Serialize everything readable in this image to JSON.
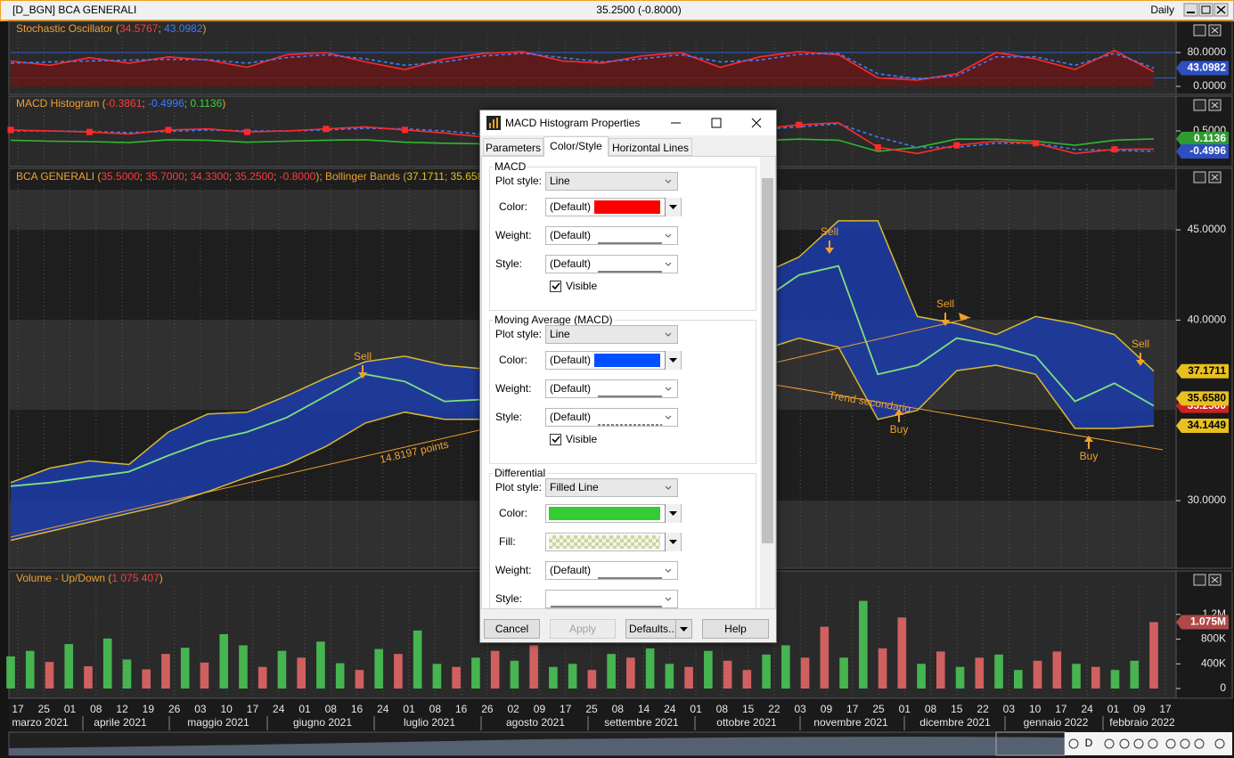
{
  "window": {
    "title": "[D_BGN] BCA GENERALI",
    "quote": "35.2500 (-0.8000)",
    "period": "Daily"
  },
  "stochastic": {
    "type": "line",
    "title_parts": [
      {
        "text": "Stochastic Oscillator (",
        "color": "#f0a030"
      },
      {
        "text": "34.5767",
        "color": "#ff3b3b"
      },
      {
        "text": "; ",
        "color": "#f0a030"
      },
      {
        "text": "43.0982",
        "color": "#3f7bff"
      },
      {
        "text": ")",
        "color": "#f0a030"
      }
    ],
    "ylim": [
      0,
      100
    ],
    "yticks": [
      {
        "value": 80,
        "label": "80.0000"
      },
      {
        "value": 0,
        "label": "0.0000"
      }
    ],
    "levels": [
      80,
      20
    ],
    "level_color": "#2f5fd0",
    "tags": [
      {
        "value": 43.0982,
        "label": "43.0982",
        "color": "#2f4fc0",
        "text_color": "#ffffff"
      }
    ],
    "series": [
      {
        "color": "#ff2a2a",
        "fill": "#6a1616",
        "values": [
          60,
          50,
          68,
          55,
          70,
          62,
          45,
          75,
          80,
          58,
          40,
          65,
          78,
          82,
          60,
          55,
          72,
          80,
          45,
          70,
          82,
          75,
          20,
          15,
          30,
          80,
          65,
          40,
          85,
          34.5767
        ]
      },
      {
        "color": "#3f7bff",
        "dashed": true,
        "values": [
          55,
          58,
          60,
          62,
          64,
          63,
          55,
          68,
          75,
          65,
          50,
          58,
          72,
          78,
          68,
          58,
          65,
          75,
          58,
          62,
          76,
          78,
          30,
          18,
          25,
          70,
          70,
          50,
          78,
          43.0982
        ]
      }
    ]
  },
  "macd": {
    "type": "line",
    "title_parts": [
      {
        "text": "MACD Histogram (",
        "color": "#f0a030"
      },
      {
        "text": "-0.3861",
        "color": "#ff3b3b"
      },
      {
        "text": "; ",
        "color": "#f0a030"
      },
      {
        "text": "-0.4996",
        "color": "#3f7bff"
      },
      {
        "text": "; ",
        "color": "#f0a030"
      },
      {
        "text": "0.1136",
        "color": "#3fd03f"
      },
      {
        "text": ")",
        "color": "#f0a030"
      }
    ],
    "ylim": [
      -1.15,
      1.24
    ],
    "yticks": [
      {
        "value": 0.5,
        "label": "0.5000"
      }
    ],
    "tags": [
      {
        "value": 0.1136,
        "label": "0.1136",
        "color": "#2f9a2f",
        "text_color": "#ffffff"
      },
      {
        "value": -0.4996,
        "label": "-0.4996",
        "color": "#2f4fc0",
        "text_color": "#ffffff"
      }
    ],
    "series": [
      {
        "color": "#2fb82f",
        "values": [
          0.05,
          0,
          -0.02,
          -0.07,
          0.07,
          0.05,
          -0.05,
          0,
          0.05,
          0.07,
          -0.05,
          -0.1,
          -0.13,
          -0.1,
          0.05,
          0.1,
          0.1,
          0.1,
          -0.05,
          0.03,
          0.1,
          0.05,
          -0.5,
          -0.3,
          0.1,
          0.1,
          0,
          -0.2,
          0.05,
          0.1136
        ]
      },
      {
        "color": "#3f7bff",
        "dashed": true,
        "values": [
          0.5,
          0.5,
          0.47,
          0.42,
          0.48,
          0.55,
          0.5,
          0.5,
          0.55,
          0.63,
          0.6,
          0.5,
          0.33,
          0.2,
          0.25,
          0.4,
          0.5,
          0.6,
          0.55,
          0.57,
          0.7,
          0.85,
          0.2,
          -0.3,
          -0.3,
          -0.1,
          -0.1,
          -0.4,
          -0.45,
          -0.4996
        ]
      },
      {
        "color": "#ff2a2a",
        "markers": true,
        "values": [
          0.55,
          0.5,
          0.45,
          0.35,
          0.55,
          0.6,
          0.45,
          0.5,
          0.6,
          0.7,
          0.55,
          0.4,
          0.2,
          0.1,
          0.3,
          0.5,
          0.6,
          0.7,
          0.5,
          0.6,
          0.8,
          0.9,
          -0.3,
          -0.6,
          -0.2,
          0,
          -0.1,
          -0.6,
          -0.4,
          -0.3861
        ]
      }
    ]
  },
  "price": {
    "type": "band",
    "title_parts": [
      {
        "text": "BCA GENERALI (",
        "color": "#f0a030"
      },
      {
        "text": "35.5000",
        "color": "#ff3b3b"
      },
      {
        "text": "; ",
        "color": "#f0a030"
      },
      {
        "text": "35.7000",
        "color": "#ff3b3b"
      },
      {
        "text": "; ",
        "color": "#f0a030"
      },
      {
        "text": "34.3300",
        "color": "#ff3b3b"
      },
      {
        "text": "; ",
        "color": "#f0a030"
      },
      {
        "text": "35.2500",
        "color": "#ff3b3b"
      },
      {
        "text": "; ",
        "color": "#f0a030"
      },
      {
        "text": "-0.8000",
        "color": "#ff3b3b"
      },
      {
        "text": "); Bollinger Bands (",
        "color": "#f0a030"
      },
      {
        "text": "37.1711",
        "color": "#e8c020"
      },
      {
        "text": "; ",
        "color": "#f0a030"
      },
      {
        "text": "35.6580",
        "color": "#e8c020"
      }
    ],
    "ylim": [
      26.3,
      47.47
    ],
    "yticks": [
      {
        "value": 45,
        "label": "45.0000"
      },
      {
        "value": 40,
        "label": "40.0000"
      },
      {
        "value": 30,
        "label": "30.0000"
      }
    ],
    "tags": [
      {
        "value": 37.1711,
        "label": "37.1711",
        "color": "#e8c020",
        "text_color": "#000000"
      },
      {
        "value": 35.25,
        "label": "35.2500",
        "color": "#d02020",
        "text_color": "#ffffff"
      },
      {
        "value": 35.658,
        "label": "35.6580",
        "color": "#e8c020",
        "text_color": "#000000"
      },
      {
        "value": 34.1449,
        "label": "34.1449",
        "color": "#e8c020",
        "text_color": "#000000"
      }
    ],
    "band_fill": "#1c3ca8",
    "series": [
      {
        "color": "#7ee07e",
        "values": [
          30.8,
          31.0,
          31.3,
          31.6,
          32.5,
          33.3,
          33.8,
          34.6,
          35.8,
          37.0,
          36.6,
          35.5,
          35.6,
          36.0,
          36.5,
          37.0,
          37.8,
          38.5,
          39.5,
          41.0,
          42.5,
          43.0,
          37.0,
          37.5,
          39.0,
          38.6,
          38.0,
          35.5,
          36.5,
          35.25
        ]
      },
      {
        "color": "#d8b830",
        "values": [
          31.0,
          31.8,
          32.2,
          32.0,
          33.8,
          34.8,
          34.9,
          35.8,
          36.8,
          37.7,
          38.0,
          37.5,
          37.3,
          37.5,
          38,
          38.5,
          39,
          40,
          41,
          42.5,
          43.5,
          45.5,
          45.5,
          40.2,
          39.8,
          39.2,
          40.2,
          39.8,
          39.2,
          37.1711
        ]
      },
      {
        "color": "#d8b830",
        "values": [
          27.8,
          28.3,
          28.8,
          29.3,
          29.8,
          30.5,
          31.3,
          32.0,
          33.0,
          34.3,
          34.9,
          34.5,
          34.5,
          34.6,
          35,
          35.5,
          36,
          36.5,
          37,
          38.3,
          39,
          38.5,
          34.5,
          35.0,
          37.2,
          37.5,
          37.0,
          34.0,
          34.0,
          34.1449
        ]
      }
    ],
    "annotations": [
      "Sell",
      "Sell",
      "Sell",
      "Sell",
      "Buy",
      "Buy",
      "14.8197 points",
      "Trend secondario"
    ],
    "annotation_color": "#f0a030"
  },
  "volume": {
    "type": "bar",
    "title_parts": [
      {
        "text": "Volume - Up/Down (",
        "color": "#f0a030"
      },
      {
        "text": "1 075 407",
        "color": "#ff3b3b"
      },
      {
        "text": ")",
        "color": "#f0a030"
      }
    ],
    "ylim": [
      0,
      1630000
    ],
    "yticks": [
      {
        "value": 1200000,
        "label": "1.2M"
      },
      {
        "value": 800000,
        "label": "800K"
      },
      {
        "value": 400000,
        "label": "400K"
      },
      0
    ],
    "tags": [
      {
        "value": 1075407,
        "label": "1.075M",
        "color": "#b04848",
        "text_color": "#ffffff"
      }
    ],
    "values": [
      520000,
      610000,
      430000,
      720000,
      360000,
      810000,
      470000,
      310000,
      560000,
      660000,
      420000,
      880000,
      700000,
      350000,
      610000,
      500000,
      760000,
      410000,
      300000,
      640000,
      560000,
      940000,
      400000,
      350000,
      500000,
      610000,
      450000,
      700000,
      350000,
      400000,
      300000,
      560000,
      500000,
      650000,
      400000,
      350000,
      610000,
      450000,
      300000,
      550000,
      700000,
      500000,
      1000000,
      500000,
      1420000,
      650000,
      1150000,
      400000,
      600000,
      350000,
      500000,
      550000,
      300000,
      450000,
      600000,
      400000,
      350000,
      300000,
      450000,
      1075407
    ],
    "bar_colors": [
      "#46b450",
      "#46b450",
      "#d06060",
      "#46b450",
      "#d06060",
      "#46b450",
      "#46b450",
      "#d06060",
      "#d06060",
      "#46b450",
      "#d06060",
      "#46b450",
      "#46b450",
      "#d06060",
      "#46b450",
      "#d06060",
      "#46b450",
      "#46b450",
      "#d06060",
      "#46b450",
      "#d06060",
      "#46b450",
      "#46b450",
      "#d06060",
      "#46b450",
      "#d06060",
      "#46b450",
      "#d06060",
      "#46b450",
      "#46b450",
      "#d06060",
      "#46b450",
      "#d06060",
      "#46b450",
      "#46b450",
      "#d06060",
      "#46b450",
      "#d06060",
      "#d06060",
      "#46b450",
      "#46b450",
      "#d06060",
      "#d06060",
      "#46b450",
      "#46b450",
      "#d06060",
      "#d06060",
      "#46b450",
      "#d06060",
      "#46b450",
      "#d06060",
      "#46b450",
      "#46b450",
      "#d06060",
      "#d06060",
      "#46b450",
      "#d06060",
      "#46b450",
      "#46b450",
      "#d06060"
    ]
  },
  "date_axis": {
    "days": [
      "17",
      "25",
      "01",
      "08",
      "12",
      "19",
      "26",
      "03",
      "10",
      "17",
      "24",
      "01",
      "08",
      "16",
      "24",
      "01",
      "08",
      "16",
      "26",
      "02",
      "09",
      "17",
      "25",
      "08",
      "14",
      "24",
      "01",
      "08",
      "15",
      "22",
      "03",
      "09",
      "17",
      "25",
      "01",
      "08",
      "15",
      "22",
      "03",
      "10",
      "17",
      "24",
      "01",
      "09",
      "17"
    ],
    "months": [
      "marzo 2021",
      "aprile 2021",
      "maggio 2021",
      "giugno 2021",
      "luglio 2021",
      "agosto 2021",
      "settembre 2021",
      "ottobre 2021",
      "novembre 2021",
      "dicembre 2021",
      "gennaio 2022",
      "febbraio 2022"
    ]
  },
  "toolbar": {
    "period_button": "D"
  },
  "dialog": {
    "title": "MACD Histogram Properties",
    "tabs": [
      "Parameters",
      "Color/Style",
      "Horizontal Lines"
    ],
    "active_tab": 1,
    "sections": [
      {
        "title": "MACD",
        "fields": [
          {
            "label": "Plot style:",
            "value": "Line"
          },
          {
            "label": "Color:",
            "value": "(Default)",
            "swatch": "#ff0000"
          },
          {
            "label": "Weight:",
            "value": "(Default)",
            "line": "solid"
          },
          {
            "label": "Style:",
            "value": "(Default)",
            "line": "solid"
          }
        ],
        "visible": {
          "label": "Visible",
          "checked": true
        }
      },
      {
        "title": "Moving Average (MACD)",
        "fields": [
          {
            "label": "Plot style:",
            "value": "Line"
          },
          {
            "label": "Color:",
            "value": "(Default)",
            "swatch": "#0050ff"
          },
          {
            "label": "Weight:",
            "value": "(Default)",
            "line": "solid"
          },
          {
            "label": "Style:",
            "value": "(Default)",
            "line": "dashed"
          }
        ],
        "visible": {
          "label": "Visible",
          "checked": true
        }
      },
      {
        "title": "Differential",
        "fields": [
          {
            "label": "Plot style:",
            "value": "Filled Line"
          },
          {
            "label": "Color:",
            "swatch": "#33cc33"
          },
          {
            "label": "Fill:",
            "swatch": "checker"
          },
          {
            "label": "Weight:",
            "value": "(Default)",
            "line": "solid"
          },
          {
            "label": "Style:",
            "line": "solid"
          }
        ]
      }
    ],
    "buttons": [
      {
        "label": "Cancel",
        "enabled": true
      },
      {
        "label": "Apply",
        "enabled": false
      },
      {
        "label": "Defaults...",
        "enabled": true,
        "menu": true
      },
      {
        "label": "Help",
        "enabled": true
      }
    ]
  }
}
